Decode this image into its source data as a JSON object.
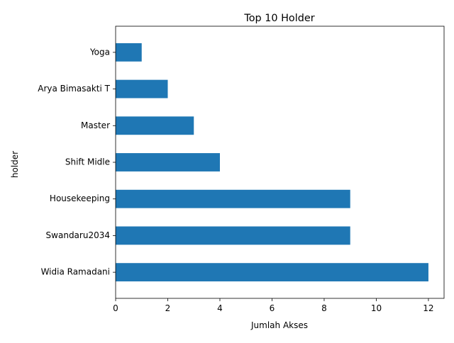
{
  "chart_data": {
    "type": "bar",
    "orientation": "horizontal",
    "title": "Top 10 Holder",
    "xlabel": "Jumlah Akses",
    "ylabel": "holder",
    "categories": [
      "Widia Ramadani",
      "Swandaru2034",
      "Housekeeping",
      "Shift Midle",
      "Master",
      "Arya Bimasakti T",
      "Yoga"
    ],
    "values": [
      12,
      9,
      9,
      4,
      3,
      2,
      1
    ],
    "xlim": [
      0,
      12.6
    ],
    "xticks": [
      0,
      2,
      4,
      6,
      8,
      10,
      12
    ],
    "bar_color": "#1f77b4",
    "grid": false
  }
}
